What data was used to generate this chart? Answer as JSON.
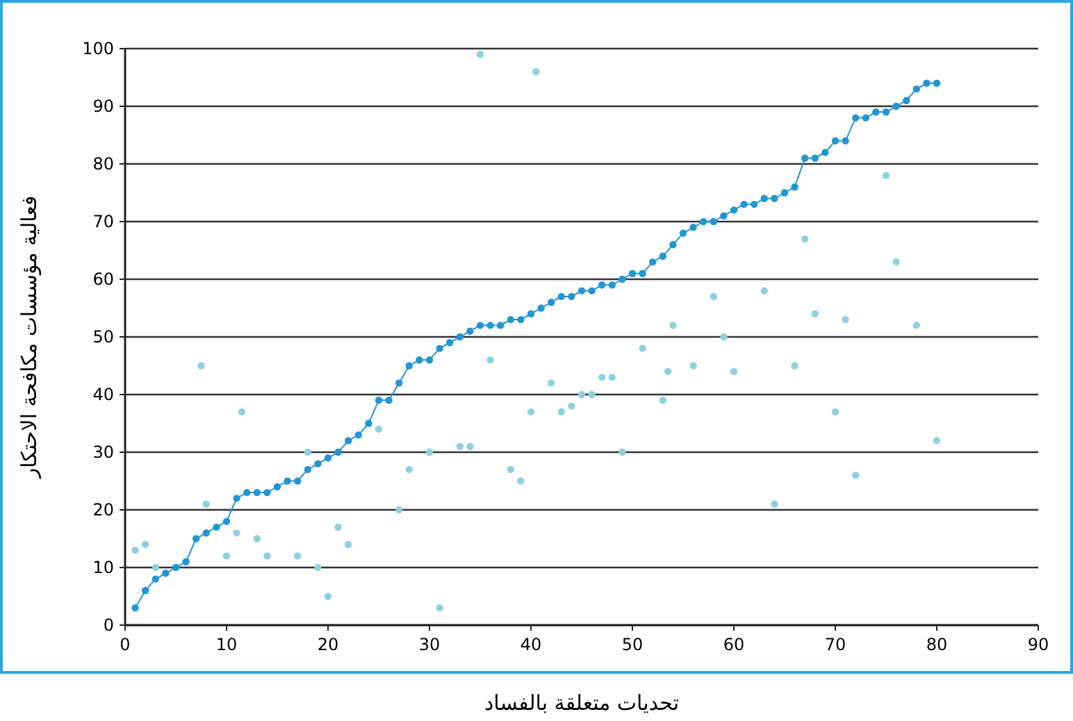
{
  "chart_data": {
    "type": "scatter",
    "xlabel": "تحديات متعلقة بالفساد",
    "ylabel": "فعالية مؤسسات مكافحة الاحتكار",
    "xlim": [
      0,
      90
    ],
    "ylim": [
      0,
      100
    ],
    "xticks": [
      0,
      10,
      20,
      30,
      40,
      50,
      60,
      70,
      80,
      90
    ],
    "yticks": [
      0,
      10,
      20,
      30,
      40,
      50,
      60,
      70,
      80,
      90,
      100
    ],
    "grid": "y",
    "series": [
      {
        "color": "#8fd0e0",
        "x": [
          1,
          2,
          3,
          7.5,
          8,
          10,
          11,
          11.5,
          13,
          14,
          17,
          18,
          19,
          20,
          21,
          22,
          25,
          27,
          28,
          30,
          31,
          33,
          34,
          35,
          36,
          38,
          39,
          40,
          40.5,
          42,
          43,
          44,
          45,
          46,
          47,
          48,
          49,
          51,
          53,
          53.5,
          54,
          56,
          58,
          59,
          60,
          63,
          64,
          66,
          67,
          68,
          70,
          71,
          72,
          75,
          76,
          78,
          80
        ],
        "values": [
          13,
          14,
          10,
          45,
          21,
          12,
          16,
          37,
          15,
          12,
          12,
          30,
          10,
          5,
          17,
          14,
          34,
          20,
          27,
          30,
          3,
          31,
          31,
          99,
          46,
          27,
          25,
          37,
          96,
          42,
          37,
          38,
          40,
          40,
          43,
          43,
          30,
          48,
          39,
          44,
          52,
          45,
          57,
          50,
          44,
          58,
          21,
          45,
          67,
          54,
          37,
          53,
          26,
          78,
          63,
          52,
          32
        ]
      },
      {
        "type": "line",
        "color": "#2196d3",
        "marker": "circle",
        "line_style": "solid",
        "x": [
          1,
          2,
          3,
          4,
          5,
          6,
          7,
          8,
          9,
          10,
          11,
          12,
          13,
          14,
          15,
          16,
          17,
          18,
          19,
          20,
          21,
          22,
          23,
          24,
          25,
          26,
          27,
          28,
          29,
          30,
          31,
          32,
          33,
          34,
          35,
          36,
          37,
          38,
          39,
          40,
          41,
          42,
          43,
          44,
          45,
          46,
          47,
          48,
          49,
          50,
          51,
          52,
          53,
          54,
          55,
          56,
          57,
          58,
          59,
          60,
          61,
          62,
          63,
          64,
          65,
          66,
          67,
          68,
          69,
          70,
          71,
          72,
          73,
          74,
          75,
          76,
          77,
          78,
          79,
          80
        ],
        "values": [
          3,
          6,
          8,
          9,
          10,
          11,
          15,
          16,
          17,
          18,
          22,
          23,
          23,
          23,
          24,
          25,
          25,
          27,
          28,
          29,
          30,
          32,
          33,
          35,
          39,
          39,
          42,
          45,
          46,
          46,
          48,
          49,
          50,
          51,
          52,
          52,
          52,
          53,
          53,
          54,
          55,
          56,
          57,
          57,
          58,
          58,
          59,
          59,
          60,
          61,
          61,
          63,
          64,
          66,
          68,
          69,
          70,
          70,
          71,
          72,
          73,
          73,
          74,
          74,
          75,
          76,
          81,
          81,
          82,
          84,
          84,
          88,
          88,
          89,
          89,
          90,
          91,
          93,
          94,
          94
        ]
      }
    ]
  }
}
